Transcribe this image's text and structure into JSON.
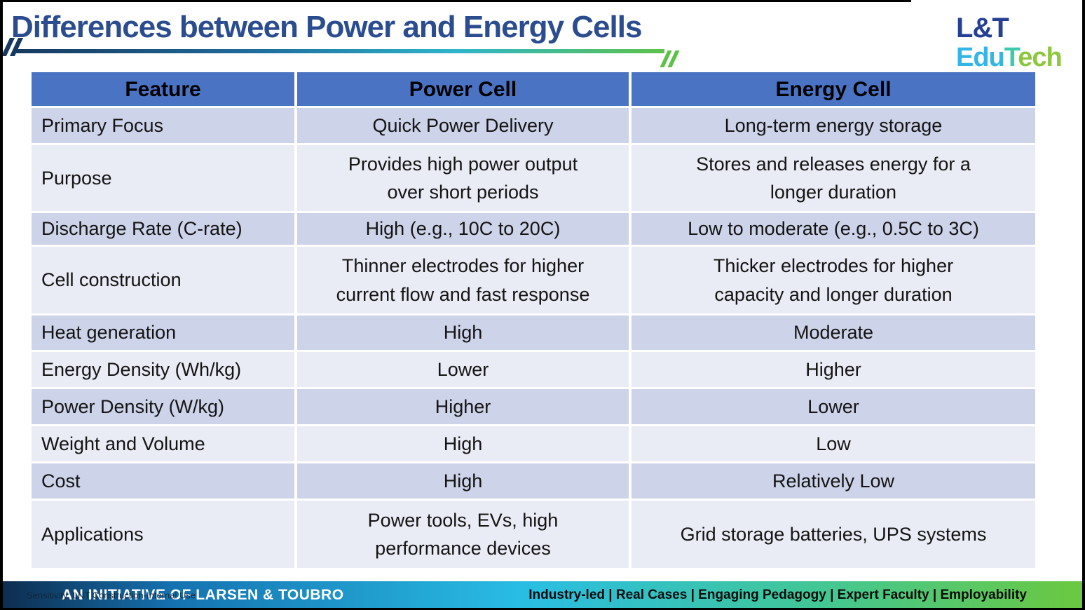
{
  "slide": {
    "title": "Differences between Power and Energy Cells"
  },
  "logo": {
    "line1": "L&T",
    "edutech": [
      "Edu",
      "T",
      "ech"
    ]
  },
  "table": {
    "headers": [
      "Feature",
      "Power Cell",
      "Energy Cell"
    ],
    "rows": [
      [
        "Primary Focus",
        "Quick Power Delivery",
        "Long-term energy storage"
      ],
      [
        "Purpose",
        "Provides high power output\nover short periods",
        "Stores and releases energy for a\nlonger duration"
      ],
      [
        "Discharge Rate (C-rate)",
        "High (e.g., 10C to 20C)",
        "Low to moderate (e.g., 0.5C to 3C)"
      ],
      [
        "Cell construction",
        "Thinner electrodes for higher\ncurrent flow and fast response",
        "Thicker electrodes for higher\ncapacity and longer duration"
      ],
      [
        "Heat generation",
        "High",
        "Moderate"
      ],
      [
        "Energy Density (Wh/kg)",
        "Lower",
        "Higher"
      ],
      [
        "Power Density (W/kg)",
        "Higher",
        "Lower"
      ],
      [
        "Weight and Volume",
        "High",
        "Low"
      ],
      [
        "Cost",
        "High",
        "Relatively Low"
      ],
      [
        "Applications",
        "Power tools, EVs, high\nperformance devices",
        "Grid storage batteries, UPS systems"
      ]
    ]
  },
  "footer": {
    "initiative": "AN INITIATIVE OF LARSEN & TOUBRO",
    "sensitivity": "Sensitivity: LNT Construction-Internal Use",
    "tagline": "Industry-led | Real Cases | Engaging Pedagogy | Expert Faculty | Employability"
  },
  "colors": {
    "title_blue": "#2b4d8f",
    "header_bg": "#4a73c4",
    "band_dark": "#cdd3e9",
    "band_light": "#e9ebf5",
    "cell_text": "#141414",
    "line_navy": "#17395f",
    "line_cyan": "#2fb5cb",
    "line_green": "#5ec24a",
    "logo_blue": "#253f94",
    "logo_cyan": "#33b5e5",
    "logo_teal": "#3cc9ad",
    "logo_green": "#8dc63f",
    "footer_navy": "#0d2c4e",
    "footer_blue": "#1572b0",
    "footer_cyan": "#29bde4",
    "footer_teal": "#43c793",
    "footer_green": "#6cc83e",
    "footer_text_light": "#ffffff",
    "footer_text_dark": "#0a0a0a"
  }
}
